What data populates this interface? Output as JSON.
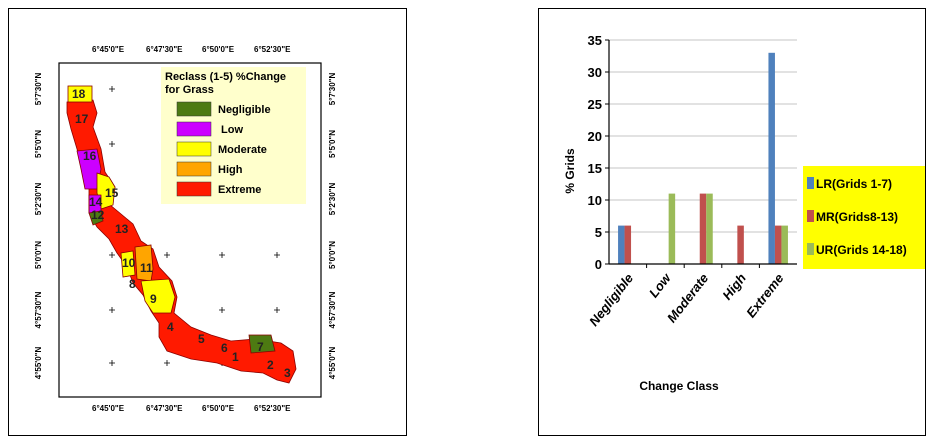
{
  "map": {
    "legend_title_line1": "Reclass (1-5) %Change",
    "legend_title_line2": "for Grass",
    "legend": [
      {
        "label": "Negligible",
        "color": "#4d7a12"
      },
      {
        "label": "Low",
        "color": "#cc00ff"
      },
      {
        "label": "Moderate",
        "color": "#ffff00"
      },
      {
        "label": "High",
        "color": "#ffa500"
      },
      {
        "label": "Extreme",
        "color": "#ff1a00"
      }
    ],
    "legend_bg": "#ffffcc",
    "lon_labels": [
      "6°45'0\"E",
      "6°47'30\"E",
      "6°50'0\"E",
      "6°52'30\"E"
    ],
    "lat_labels": [
      "5°7'30\"N",
      "5°5'0\"N",
      "5°2'30\"N",
      "5°0'0\"N",
      "4°57'30\"N",
      "4°55'0\"N"
    ],
    "grid_numbers": [
      "18",
      "17",
      "16",
      "15",
      "14",
      "12",
      "13",
      "10",
      "11",
      "8",
      "9",
      "4",
      "5",
      "6",
      "1",
      "7",
      "2",
      "3"
    ]
  },
  "chart_data": {
    "type": "bar",
    "categories": [
      "Negligible",
      "Low",
      "Moderate",
      "High",
      "Extreme"
    ],
    "series": [
      {
        "name": "LR(Grids 1-7)",
        "color": "#4f81bd",
        "values": [
          6,
          0,
          0,
          0,
          33
        ]
      },
      {
        "name": "MR(Grids8-13)",
        "color": "#c0504d",
        "values": [
          6,
          0,
          11,
          6,
          6
        ]
      },
      {
        "name": "UR(Grids 14-18)",
        "color": "#9bbb59",
        "values": [
          0,
          11,
          11,
          0,
          6
        ]
      }
    ],
    "xlabel": "Change Class",
    "ylabel": "% Grids",
    "ylim": [
      0,
      35
    ],
    "yticks": [
      "0",
      "5",
      "10",
      "15",
      "20",
      "25",
      "30",
      "35"
    ],
    "grid": true,
    "legend_position": "right",
    "legend_bg": "#ffff00"
  }
}
